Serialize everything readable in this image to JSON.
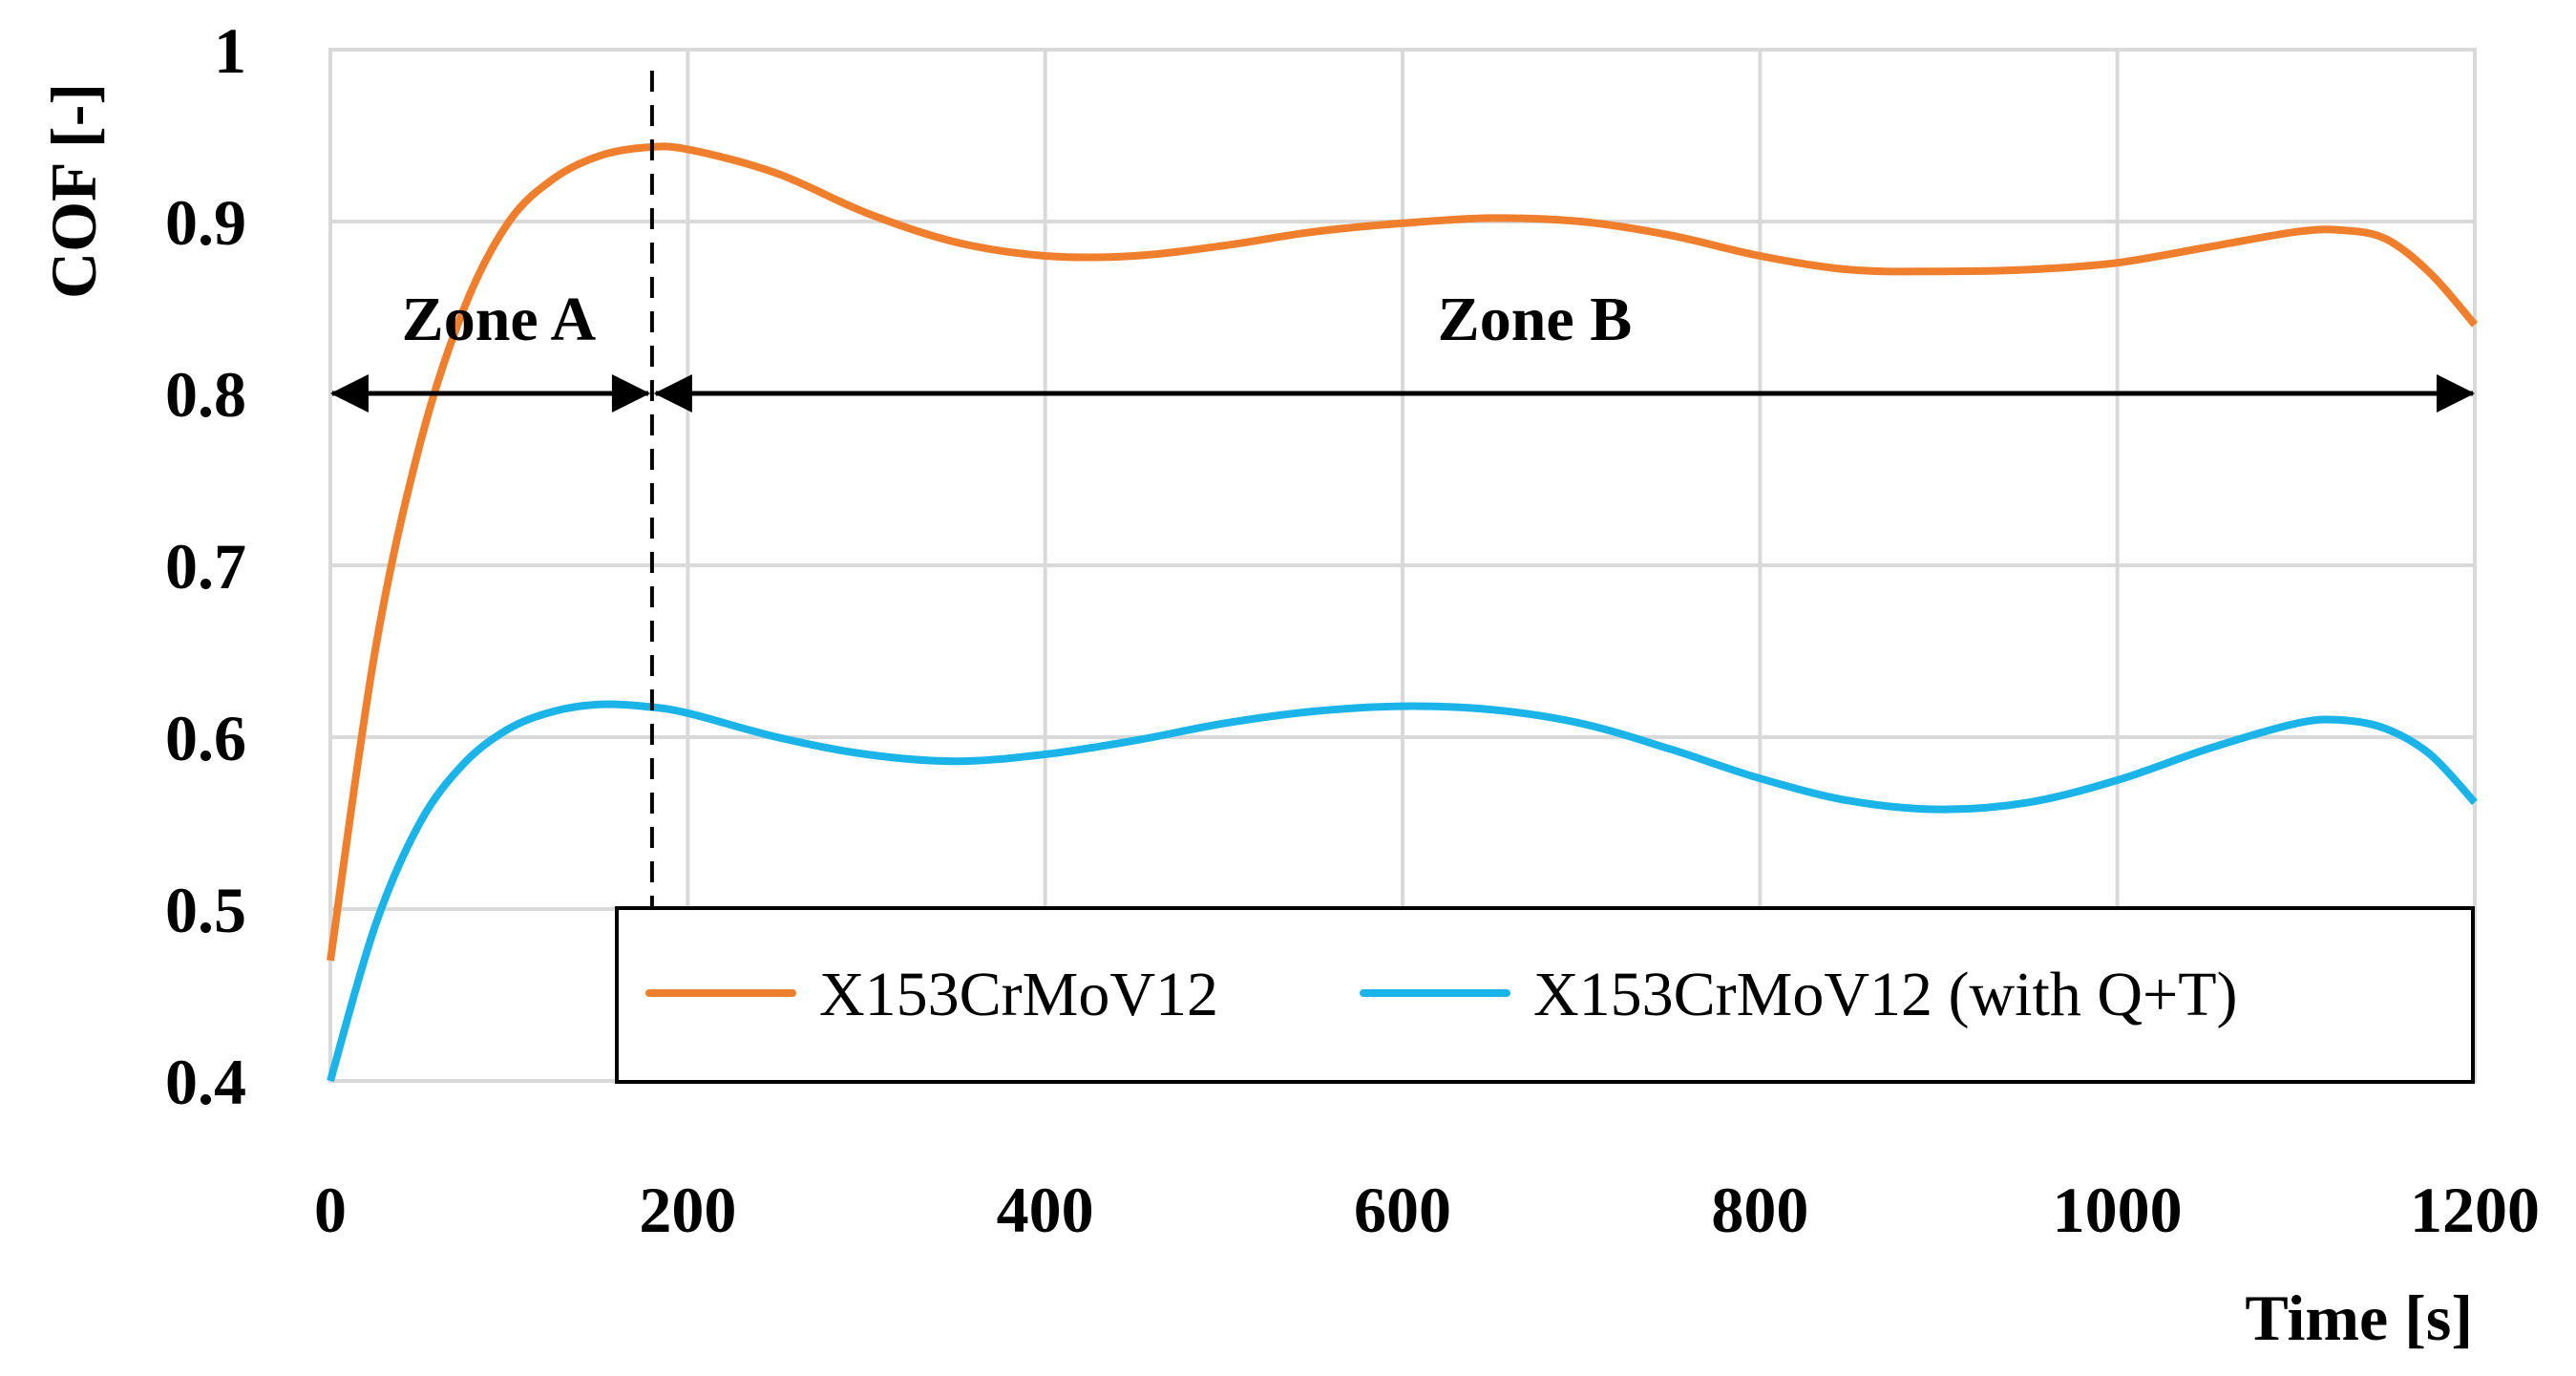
{
  "chart_data": {
    "type": "line",
    "xlabel": "Time [s]",
    "ylabel": "COF [-]",
    "xlim": [
      0,
      1200
    ],
    "ylim": [
      0.4,
      1.0
    ],
    "xticks": [
      0,
      200,
      400,
      600,
      800,
      1000,
      1200
    ],
    "yticks": [
      0.4,
      0.5,
      0.6,
      0.7,
      0.8,
      0.9,
      1.0
    ],
    "ytick_labels": [
      "0.4",
      "0.5",
      "0.6",
      "0.7",
      "0.8",
      "0.9",
      "1"
    ],
    "grid": true,
    "legend_position": "bottom-right",
    "series": [
      {
        "name": "X153CrMoV12",
        "color": "#f07f2d",
        "x": [
          0,
          25,
          50,
          75,
          100,
          125,
          150,
          175,
          200,
          250,
          300,
          350,
          400,
          450,
          500,
          550,
          600,
          650,
          700,
          750,
          800,
          850,
          900,
          950,
          1000,
          1050,
          1100,
          1125,
          1150,
          1175,
          1200
        ],
        "y": [
          0.47,
          0.65,
          0.77,
          0.85,
          0.9,
          0.925,
          0.938,
          0.943,
          0.942,
          0.928,
          0.905,
          0.888,
          0.88,
          0.88,
          0.886,
          0.894,
          0.899,
          0.902,
          0.9,
          0.892,
          0.88,
          0.872,
          0.871,
          0.872,
          0.876,
          0.885,
          0.894,
          0.895,
          0.89,
          0.87,
          0.84
        ]
      },
      {
        "name": "X153CrMoV12 (with Q+T)",
        "color": "#1ab4e8",
        "x": [
          0,
          25,
          50,
          75,
          100,
          125,
          150,
          175,
          200,
          250,
          300,
          350,
          400,
          450,
          500,
          550,
          600,
          650,
          700,
          750,
          800,
          850,
          900,
          950,
          1000,
          1050,
          1100,
          1125,
          1150,
          1175,
          1200
        ],
        "y": [
          0.4,
          0.49,
          0.55,
          0.585,
          0.605,
          0.615,
          0.619,
          0.618,
          0.614,
          0.6,
          0.59,
          0.586,
          0.59,
          0.598,
          0.608,
          0.615,
          0.618,
          0.616,
          0.608,
          0.593,
          0.576,
          0.563,
          0.558,
          0.562,
          0.575,
          0.593,
          0.608,
          0.61,
          0.605,
          0.59,
          0.562
        ]
      }
    ],
    "annotations": {
      "divider_x": 180,
      "zone_a": {
        "label": "Zone A",
        "x_start": 0,
        "x_end": 180,
        "y": 0.8
      },
      "zone_b": {
        "label": "Zone B",
        "x_start": 180,
        "x_end": 1200,
        "y": 0.8
      }
    }
  }
}
